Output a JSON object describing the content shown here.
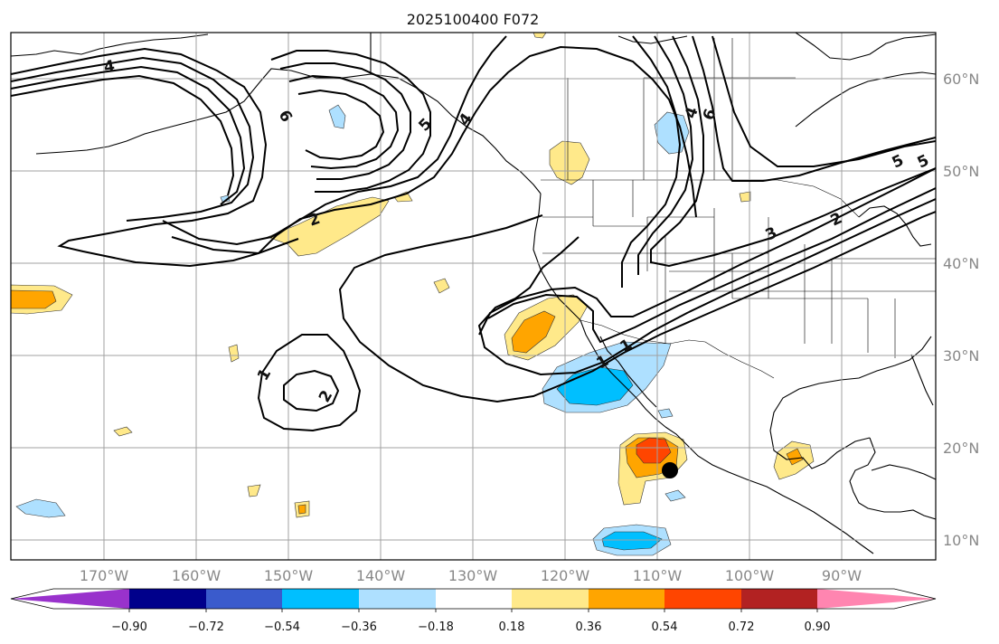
{
  "title": "2025100400 F072",
  "colors": {
    "land_line": "#000000",
    "grid": "#a0a0a0",
    "contour": "#000000",
    "marker": "#000000"
  },
  "lon_labels": [
    "170°W",
    "160°W",
    "150°W",
    "140°W",
    "130°W",
    "120°W",
    "110°W",
    "100°W",
    "90°W"
  ],
  "lat_labels": [
    "60°N",
    "50°N",
    "40°N",
    "30°N",
    "20°N",
    "10°N"
  ],
  "contour_labels": [
    "4",
    "6",
    "5",
    "4",
    "4",
    "5",
    "6",
    "2",
    "2",
    "3",
    "5",
    "1",
    "2",
    "1",
    "1"
  ],
  "colorbar": {
    "colors": [
      "#9932cc",
      "#00008b",
      "#3a5bcc",
      "#00bfff",
      "#aee0ff",
      "#ffffff",
      "#ffe98a",
      "#ffa500",
      "#ff4500",
      "#b22222",
      "#ff85b0"
    ],
    "tick_labels": [
      "−0.90",
      "−0.72",
      "−0.54",
      "−0.36",
      "−0.18",
      "0.18",
      "0.36",
      "0.54",
      "0.72",
      "0.90"
    ]
  }
}
